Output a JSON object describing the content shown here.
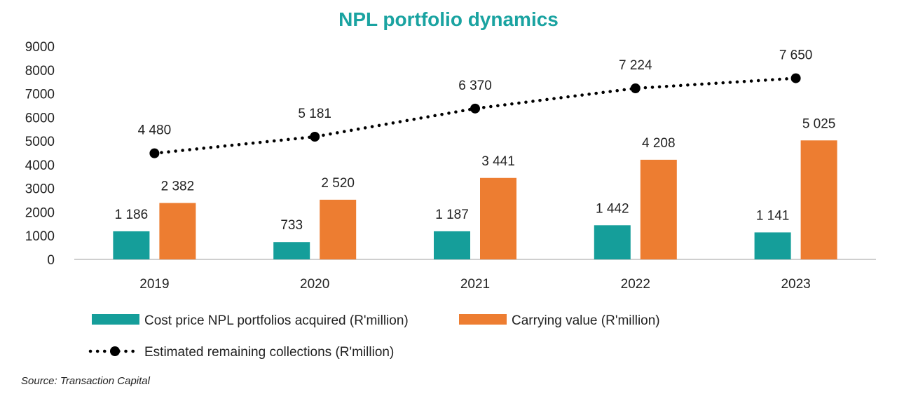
{
  "chart_data": {
    "type": "bar",
    "title": "NPL portfolio dynamics",
    "categories": [
      "2019",
      "2020",
      "2021",
      "2022",
      "2023"
    ],
    "ylim": [
      0,
      9000
    ],
    "yticks": [
      0,
      1000,
      2000,
      3000,
      4000,
      5000,
      6000,
      7000,
      8000,
      9000
    ],
    "series": [
      {
        "name": "Cost price NPL portfolios acquired (R'million)",
        "kind": "bar",
        "color": "#159e9a",
        "values": [
          1186,
          733,
          1187,
          1442,
          1141
        ],
        "labels": [
          "1 186",
          "733",
          "1 187",
          "1 442",
          "1 141"
        ]
      },
      {
        "name": "Carrying value (R'million)",
        "kind": "bar",
        "color": "#ed7d31",
        "values": [
          2382,
          2520,
          3441,
          4208,
          5025
        ],
        "labels": [
          "2 382",
          "2 520",
          "3 441",
          "4 208",
          "5 025"
        ]
      },
      {
        "name": "Estimated remaining collections (R'million)",
        "kind": "line",
        "style": "dotted",
        "color": "#000000",
        "values": [
          4480,
          5181,
          6370,
          7224,
          7650
        ],
        "labels": [
          "4 480",
          "5 181",
          "6 370",
          "7 224",
          "7 650"
        ]
      }
    ],
    "title_color": "#1aa3a1",
    "axis_color": "#bfbfbf",
    "legend_position": "bottom",
    "source": "Source: Transaction Capital"
  }
}
